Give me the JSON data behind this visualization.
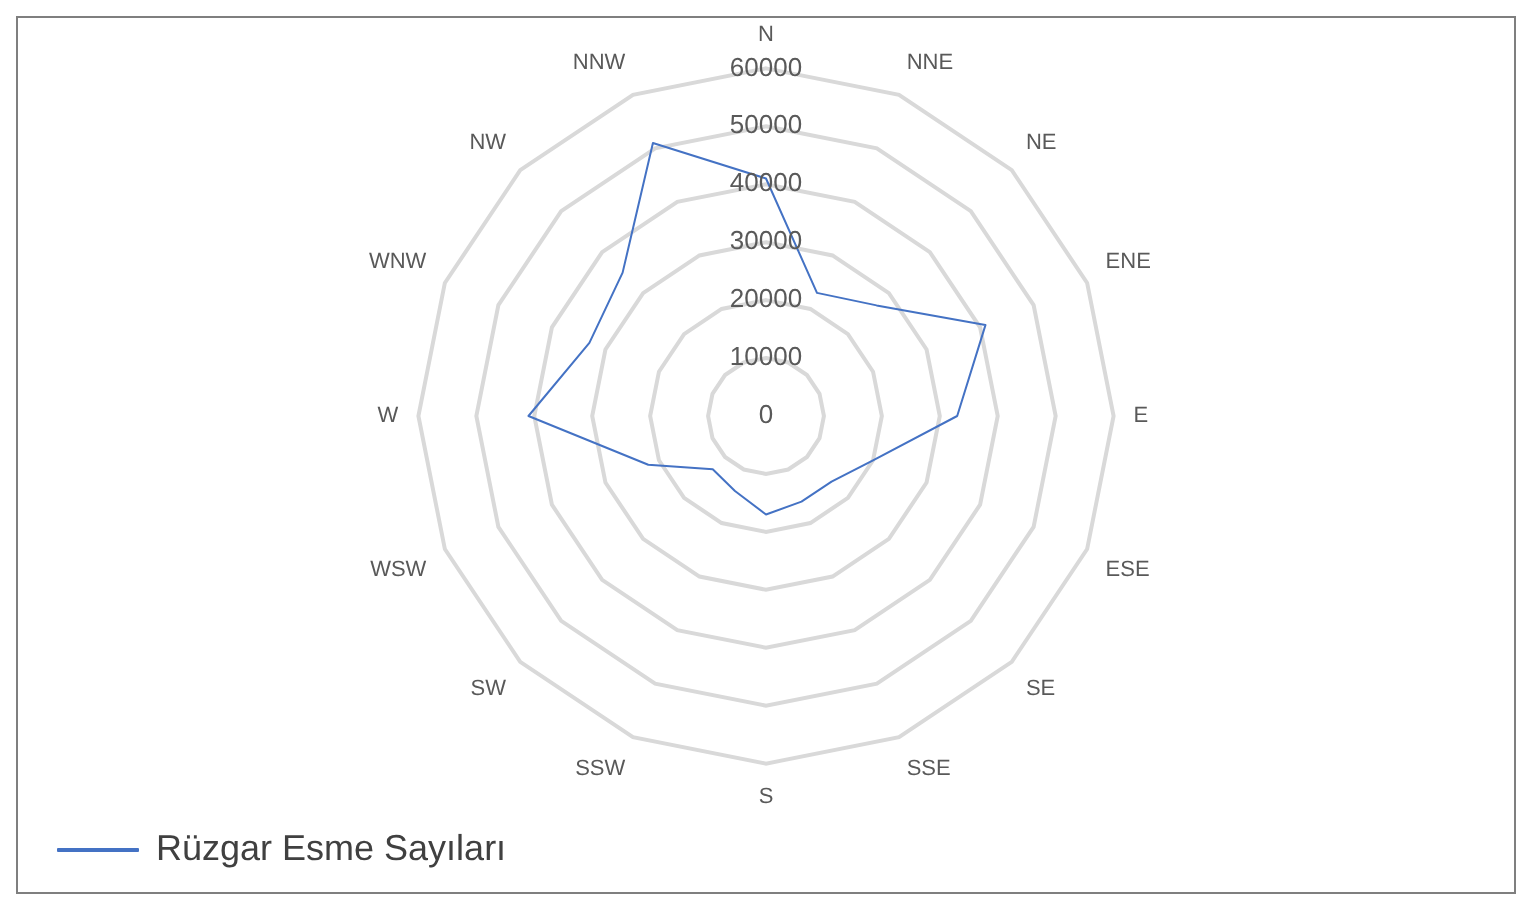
{
  "chart_data": {
    "type": "radar",
    "categories": [
      "N",
      "NNE",
      "NE",
      "ENE",
      "E",
      "ESE",
      "SE",
      "SSE",
      "S",
      "SSW",
      "SW",
      "WSW",
      "W",
      "WNW",
      "NW",
      "NNW"
    ],
    "series": [
      {
        "name": "Rüzgar Esme Sayıları",
        "color": "#4472c4",
        "values": [
          41000,
          23000,
          27000,
          41000,
          33000,
          20000,
          16000,
          16000,
          17000,
          14000,
          13000,
          22000,
          41000,
          33000,
          35000,
          51000
        ]
      }
    ],
    "ylim": [
      0,
      60000
    ],
    "yticks": [
      0,
      10000,
      20000,
      30000,
      40000,
      50000,
      60000
    ],
    "grid": true,
    "legend": "bottom left",
    "marker": "none",
    "line_style": "solid"
  }
}
